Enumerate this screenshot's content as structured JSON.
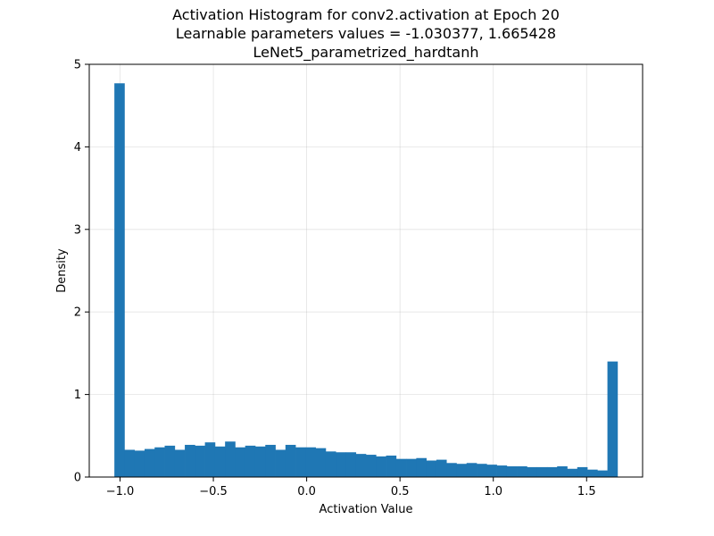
{
  "chart_data": {
    "type": "bar",
    "title": [
      "Activation Histogram for conv2.activation at Epoch 20",
      "Learnable parameters values = -1.030377, 1.665428",
      "LeNet5_parametrized_hardtanh"
    ],
    "xlabel": "Activation Value",
    "ylabel": "Density",
    "xlim": [
      -1.165,
      1.8
    ],
    "ylim": [
      0,
      5
    ],
    "xticks": [
      -1.0,
      -0.5,
      0.0,
      0.5,
      1.0,
      1.5
    ],
    "xtick_labels": [
      "−1.0",
      "−0.5",
      "0.0",
      "0.5",
      "1.0",
      "1.5"
    ],
    "yticks": [
      0,
      1,
      2,
      3,
      4,
      5
    ],
    "ytick_labels": [
      "0",
      "1",
      "2",
      "3",
      "4",
      "5"
    ],
    "grid": true,
    "bar_color": "#1f77b4",
    "bin_range": [
      -1.030377,
      1.665428
    ],
    "values": [
      4.77,
      0.33,
      0.32,
      0.34,
      0.36,
      0.38,
      0.33,
      0.39,
      0.38,
      0.42,
      0.37,
      0.43,
      0.36,
      0.38,
      0.37,
      0.39,
      0.33,
      0.39,
      0.36,
      0.36,
      0.35,
      0.31,
      0.3,
      0.3,
      0.28,
      0.27,
      0.25,
      0.26,
      0.22,
      0.22,
      0.23,
      0.2,
      0.21,
      0.17,
      0.16,
      0.17,
      0.16,
      0.15,
      0.14,
      0.13,
      0.13,
      0.12,
      0.12,
      0.12,
      0.13,
      0.1,
      0.12,
      0.09,
      0.08,
      1.4
    ]
  }
}
